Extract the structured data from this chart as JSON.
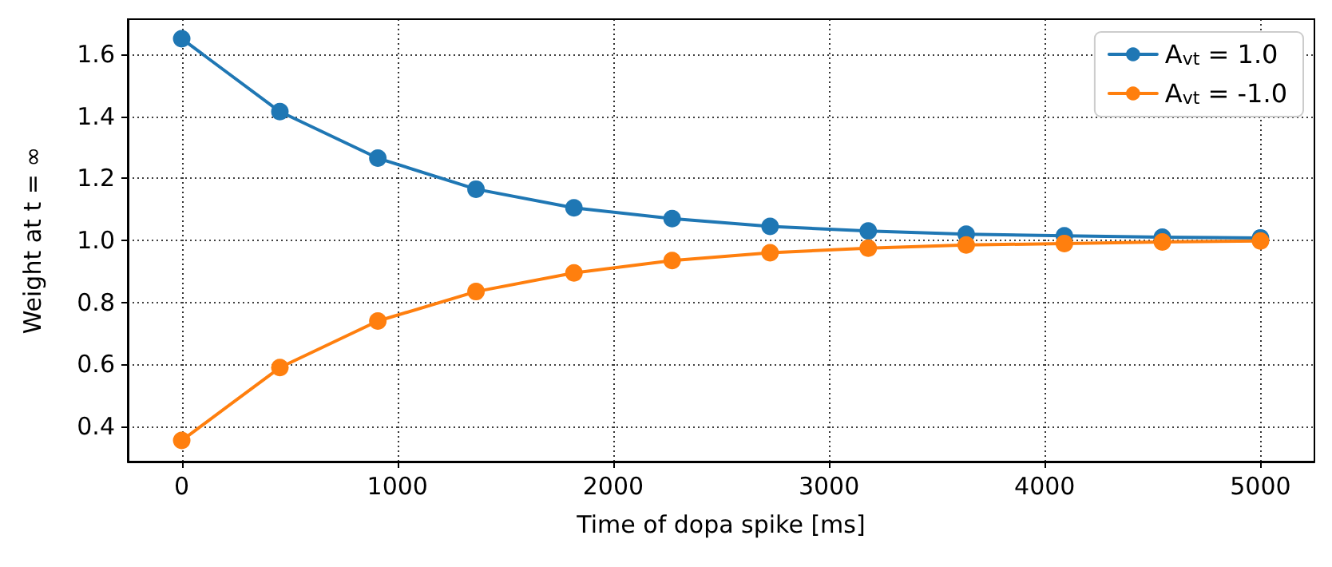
{
  "chart_data": {
    "type": "line",
    "xlabel": "Time of dopa spike [ms]",
    "ylabel": "Weight at t = ∞",
    "x": [
      0,
      455,
      909,
      1364,
      1818,
      2273,
      2727,
      3182,
      3636,
      4091,
      4545,
      5000
    ],
    "series": [
      {
        "name": "A$_{vt}$ = 1.0",
        "color": "#1f77b4",
        "values": [
          1.65,
          1.415,
          1.265,
          1.165,
          1.105,
          1.07,
          1.045,
          1.03,
          1.02,
          1.015,
          1.01,
          1.008
        ]
      },
      {
        "name": "A$_{vt}$ = -1.0",
        "color": "#ff7f0e",
        "values": [
          0.355,
          0.59,
          0.74,
          0.835,
          0.895,
          0.935,
          0.96,
          0.975,
          0.985,
          0.99,
          0.995,
          0.998
        ]
      }
    ],
    "xlim": [
      -250,
      5250
    ],
    "xticks": [
      0,
      1000,
      2000,
      3000,
      4000,
      5000
    ],
    "ylim": [
      0.287,
      1.713
    ],
    "yticks": [
      0.4,
      0.6,
      0.8,
      {
        "value": 1,
        "label": "1.0"
      },
      1.2,
      1.4,
      1.6
    ],
    "grid": true,
    "legend": "top right",
    "marker": "circle",
    "line_style": "solid"
  }
}
